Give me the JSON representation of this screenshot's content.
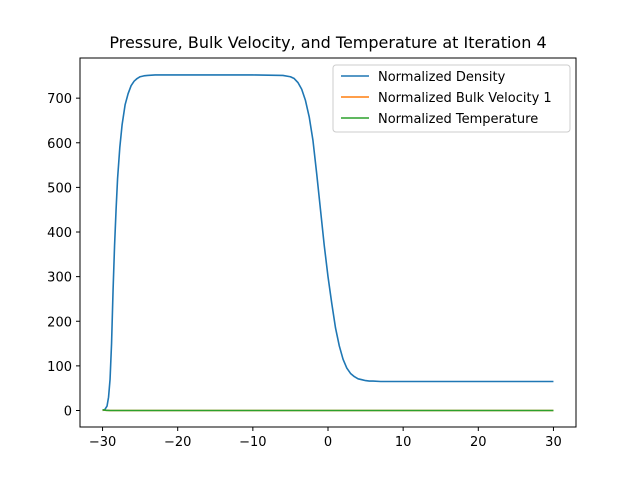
{
  "chart_data": {
    "type": "line",
    "title": "Pressure, Bulk Velocity, and Temperature at Iteration 4",
    "xlabel": "",
    "ylabel": "",
    "xlim": [
      -33,
      33
    ],
    "ylim": [
      -37,
      790
    ],
    "xticks": [
      -30,
      -20,
      -10,
      0,
      10,
      20,
      30
    ],
    "yticks": [
      0,
      100,
      200,
      300,
      400,
      500,
      600,
      700
    ],
    "grid": false,
    "legend_position": "top-right",
    "series": [
      {
        "name": "Normalized Density",
        "color": "#1f77b4",
        "x": [
          -30,
          -29.7,
          -29.4,
          -29.2,
          -29.0,
          -28.8,
          -28.6,
          -28.4,
          -28.2,
          -28.0,
          -27.7,
          -27.4,
          -27.0,
          -26.6,
          -26.2,
          -25.8,
          -25.4,
          -25.0,
          -24.5,
          -24.0,
          -23.0,
          -22.0,
          -20.0,
          -15.0,
          -10.0,
          -6.0,
          -5.0,
          -4.5,
          -4.0,
          -3.5,
          -3.0,
          -2.5,
          -2.0,
          -1.5,
          -1.0,
          -0.5,
          0.0,
          0.5,
          1.0,
          1.5,
          2.0,
          2.5,
          3.0,
          3.5,
          4.0,
          4.5,
          5.0,
          5.5,
          6.0,
          7.0,
          8.0,
          10.0,
          15.0,
          20.0,
          25.0,
          30.0
        ],
        "values": [
          0,
          2,
          10,
          30,
          70,
          150,
          270,
          370,
          450,
          520,
          590,
          640,
          685,
          710,
          728,
          738,
          744,
          748,
          750,
          751,
          752,
          752,
          752,
          752,
          752,
          751,
          748,
          744,
          735,
          720,
          695,
          658,
          605,
          530,
          450,
          370,
          300,
          240,
          185,
          145,
          115,
          95,
          83,
          76,
          71,
          69,
          67,
          66,
          66,
          65,
          65,
          65,
          65,
          65,
          65,
          65
        ]
      },
      {
        "name": "Normalized Bulk Velocity 1",
        "color": "#ff7f0e",
        "x": [
          -30,
          -29.5,
          -29,
          -28,
          -25,
          -10,
          0,
          10,
          20,
          30
        ],
        "values": [
          1,
          0.5,
          0,
          0,
          0,
          0,
          0,
          0,
          0,
          0
        ]
      },
      {
        "name": "Normalized Temperature",
        "color": "#2ca02c",
        "x": [
          -30,
          -29.5,
          -29,
          -28,
          -25,
          -10,
          0,
          10,
          20,
          30
        ],
        "values": [
          1.5,
          0.5,
          0,
          0,
          0,
          0,
          0,
          0,
          0,
          0
        ]
      }
    ]
  }
}
